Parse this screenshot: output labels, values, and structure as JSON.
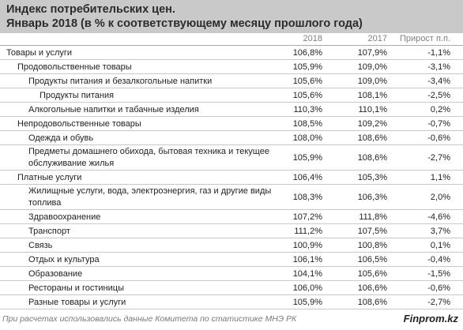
{
  "title": {
    "line1": "Индекс потребительских цен.",
    "line2": "Январь 2018 (в % к соответствующему месяцу прошлого года)"
  },
  "columns": [
    "2018",
    "2017",
    "Прирост п.п."
  ],
  "rows": [
    {
      "label": "Товары и услуги",
      "v2018": "106,8%",
      "v2017": "107,9%",
      "delta": "-1,1%"
    },
    {
      "label": "Продовольственные товары",
      "v2018": "105,9%",
      "v2017": "109,0%",
      "delta": "-3,1%"
    },
    {
      "label": "Продукты питания и безалкогольные напитки",
      "v2018": "105,6%",
      "v2017": "109,0%",
      "delta": "-3,4%"
    },
    {
      "label": "Продукты питания",
      "v2018": "105,6%",
      "v2017": "108,1%",
      "delta": "-2,5%"
    },
    {
      "label": "Алкогольные напитки и табачные изделия",
      "v2018": "110,3%",
      "v2017": "110,1%",
      "delta": "0,2%"
    },
    {
      "label": "Непродовольственные товары",
      "v2018": "108,5%",
      "v2017": "109,2%",
      "delta": "-0,7%"
    },
    {
      "label": "Одежда и обувь",
      "v2018": "108,0%",
      "v2017": "108,6%",
      "delta": "-0,6%"
    },
    {
      "label": "Предметы домашнего обихода, бытовая техника и текущее",
      "label2": "обслуживание жилья",
      "v2018": "105,9%",
      "v2017": "108,6%",
      "delta": "-2,7%"
    },
    {
      "label": "Платные услуги",
      "v2018": "106,4%",
      "v2017": "105,3%",
      "delta": "1,1%"
    },
    {
      "label": "Жилищные услуги, вода, электроэнергия, газ и другие виды",
      "label2": "топлива",
      "v2018": "108,3%",
      "v2017": "106,3%",
      "delta": "2,0%"
    },
    {
      "label": "Здравоохранение",
      "v2018": "107,2%",
      "v2017": "111,8%",
      "delta": "-4,6%"
    },
    {
      "label": "Транспорт",
      "v2018": "111,2%",
      "v2017": "107,5%",
      "delta": "3,7%"
    },
    {
      "label": "Связь",
      "v2018": "100,9%",
      "v2017": "100,8%",
      "delta": "0,1%"
    },
    {
      "label": "Отдых и культура",
      "v2018": "106,1%",
      "v2017": "106,5%",
      "delta": "-0,4%"
    },
    {
      "label": "Образование",
      "v2018": "104,1%",
      "v2017": "105,6%",
      "delta": "-1,5%"
    },
    {
      "label": "Рестораны и гостиницы",
      "v2018": "106,0%",
      "v2017": "106,6%",
      "delta": "-0,6%"
    },
    {
      "label": "Разные товары и услуги",
      "v2018": "105,9%",
      "v2017": "108,6%",
      "delta": "-2,7%"
    }
  ],
  "footer": {
    "note": "При расчетах использовались данные Комитета по статистике МНЭ РК",
    "brand": "Finprom.kz"
  }
}
